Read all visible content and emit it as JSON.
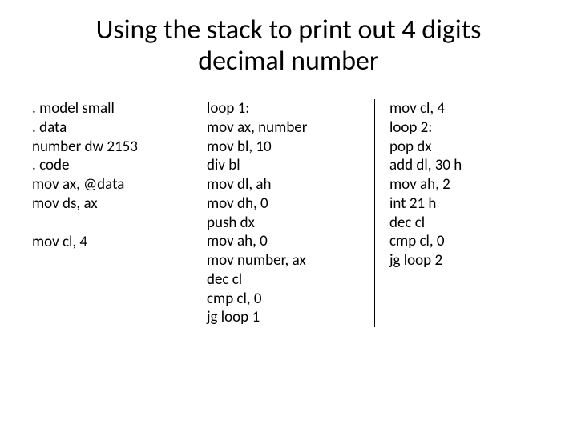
{
  "title_line1": "Using the stack to print out 4 digits",
  "title_line2": "decimal number",
  "col1": {
    "l0": ". model small",
    "l1": ". data",
    "l2": "number dw 2153",
    "l3": ". code",
    "l4": "mov ax, @data",
    "l5": "mov ds, ax",
    "l6": "mov cl, 4"
  },
  "col2": {
    "l0": "loop 1:",
    "l1": "mov ax, number",
    "l2": "mov bl, 10",
    "l3": "div bl",
    "l4": "mov dl, ah",
    "l5": "mov dh, 0",
    "l6": "push dx",
    "l7": "mov ah, 0",
    "l8": "mov number, ax",
    "l9": "dec cl",
    "l10": "cmp cl, 0",
    "l11": "jg loop 1"
  },
  "col3": {
    "l0": "mov cl, 4",
    "l1": "loop 2:",
    "l2": "pop dx",
    "l3": "add dl, 30 h",
    "l4": "mov ah, 2",
    "l5": "int 21 h",
    "l6": "dec cl",
    "l7": "cmp cl, 0",
    "l8": "jg loop 2"
  },
  "style": {
    "background_color": "#ffffff",
    "text_color": "#000000",
    "title_fontsize": 34,
    "body_fontsize": 19,
    "font_family": "Calibri",
    "divider_color": "#000000",
    "slide_width": 720,
    "slide_height": 540,
    "columns": 3
  }
}
